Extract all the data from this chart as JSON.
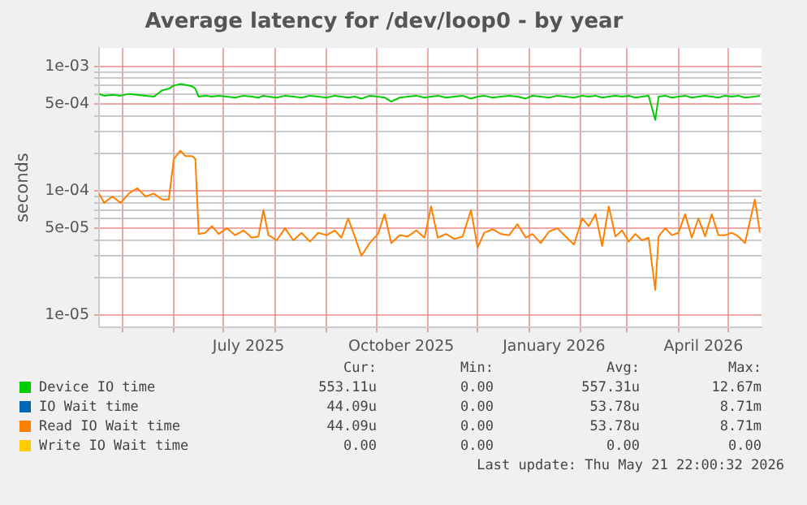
{
  "chart_data": {
    "type": "line",
    "title": "Average latency for /dev/loop0 - by year",
    "ylabel": "seconds",
    "log": "y",
    "grid": true,
    "legend": "bottom",
    "marker": "none",
    "line_style": "solid",
    "xlim": [
      "2025-04-17",
      "2026-05-21"
    ],
    "xticks": [
      {
        "value": "2025-05-01",
        "label": null
      },
      {
        "value": "2025-06-01",
        "label": null
      },
      {
        "value": "2025-07-01",
        "label": null
      },
      {
        "value": "2025-07-16",
        "label": "July 2025"
      },
      {
        "value": "2025-08-01",
        "label": null
      },
      {
        "value": "2025-09-01",
        "label": null
      },
      {
        "value": "2025-10-01",
        "label": null
      },
      {
        "value": "2025-10-16",
        "label": "October 2025"
      },
      {
        "value": "2025-11-01",
        "label": null
      },
      {
        "value": "2025-12-01",
        "label": null
      },
      {
        "value": "2026-01-01",
        "label": null
      },
      {
        "value": "2026-01-16",
        "label": "January 2026"
      },
      {
        "value": "2026-02-01",
        "label": null
      },
      {
        "value": "2026-03-01",
        "label": null
      },
      {
        "value": "2026-04-01",
        "label": null
      },
      {
        "value": "2026-04-16",
        "label": "April 2026"
      },
      {
        "value": "2026-05-01",
        "label": null
      }
    ],
    "ylim": [
      8e-06,
      0.0014
    ],
    "yticks": [
      {
        "value": 1e-05,
        "label": "1e-05"
      },
      {
        "value": 2e-05,
        "label": null
      },
      {
        "value": 3e-05,
        "label": null
      },
      {
        "value": 4e-05,
        "label": null
      },
      {
        "value": 5e-05,
        "label": "5e-05"
      },
      {
        "value": 6e-05,
        "label": null
      },
      {
        "value": 7e-05,
        "label": null
      },
      {
        "value": 8e-05,
        "label": null
      },
      {
        "value": 9e-05,
        "label": null
      },
      {
        "value": 0.0001,
        "label": "1e-04"
      },
      {
        "value": 0.0002,
        "label": null
      },
      {
        "value": 0.0003,
        "label": null
      },
      {
        "value": 0.0004,
        "label": null
      },
      {
        "value": 0.0005,
        "label": "5e-04"
      },
      {
        "value": 0.0006,
        "label": null
      },
      {
        "value": 0.0007,
        "label": null
      },
      {
        "value": 0.0008,
        "label": null
      },
      {
        "value": 0.0009,
        "label": null
      },
      {
        "value": 0.001,
        "label": "1e-03"
      }
    ],
    "x": [
      "2025-04-17",
      "2025-04-20",
      "2025-04-25",
      "2025-04-30",
      "2025-05-05",
      "2025-05-10",
      "2025-05-15",
      "2025-05-20",
      "2025-05-25",
      "2025-05-29",
      "2025-06-01",
      "2025-06-05",
      "2025-06-08",
      "2025-06-12",
      "2025-06-14",
      "2025-06-16",
      "2025-06-20",
      "2025-06-24",
      "2025-06-28",
      "2025-07-03",
      "2025-07-08",
      "2025-07-13",
      "2025-07-18",
      "2025-07-22",
      "2025-07-25",
      "2025-07-28",
      "2025-08-02",
      "2025-08-07",
      "2025-08-12",
      "2025-08-17",
      "2025-08-22",
      "2025-08-27",
      "2025-09-01",
      "2025-09-06",
      "2025-09-10",
      "2025-09-14",
      "2025-09-18",
      "2025-09-22",
      "2025-09-27",
      "2025-10-02",
      "2025-10-06",
      "2025-10-10",
      "2025-10-15",
      "2025-10-20",
      "2025-10-25",
      "2025-10-30",
      "2025-11-03",
      "2025-11-07",
      "2025-11-12",
      "2025-11-17",
      "2025-11-22",
      "2025-11-27",
      "2025-12-01",
      "2025-12-05",
      "2025-12-10",
      "2025-12-15",
      "2025-12-20",
      "2025-12-25",
      "2025-12-30",
      "2026-01-03",
      "2026-01-08",
      "2026-01-13",
      "2026-01-18",
      "2026-01-23",
      "2026-01-28",
      "2026-02-02",
      "2026-02-06",
      "2026-02-10",
      "2026-02-14",
      "2026-02-18",
      "2026-02-22",
      "2026-02-26",
      "2026-03-02",
      "2026-03-06",
      "2026-03-10",
      "2026-03-14",
      "2026-03-18",
      "2026-03-20",
      "2026-03-24",
      "2026-03-28",
      "2026-04-01",
      "2026-04-05",
      "2026-04-09",
      "2026-04-13",
      "2026-04-17",
      "2026-04-21",
      "2026-04-25",
      "2026-04-29",
      "2026-05-03",
      "2026-05-07",
      "2026-05-11",
      "2026-05-17",
      "2026-05-20"
    ],
    "series": [
      {
        "name": "Device IO time",
        "color": "#00cc00",
        "values": [
          0.0006,
          0.00058,
          0.00059,
          0.00058,
          0.0006,
          0.00059,
          0.00058,
          0.00057,
          0.00064,
          0.00066,
          0.0007,
          0.00072,
          0.00071,
          0.00069,
          0.00066,
          0.00057,
          0.00058,
          0.00057,
          0.00058,
          0.00057,
          0.00056,
          0.00058,
          0.00057,
          0.00056,
          0.00058,
          0.00057,
          0.00056,
          0.00058,
          0.00057,
          0.00056,
          0.00058,
          0.00057,
          0.00056,
          0.00058,
          0.00057,
          0.00056,
          0.00057,
          0.00055,
          0.00058,
          0.00057,
          0.00056,
          0.00052,
          0.00056,
          0.00057,
          0.00058,
          0.00056,
          0.00057,
          0.00058,
          0.00056,
          0.00057,
          0.00058,
          0.00055,
          0.00057,
          0.00058,
          0.00056,
          0.00057,
          0.00058,
          0.00057,
          0.00055,
          0.00058,
          0.00057,
          0.00056,
          0.00058,
          0.00057,
          0.00056,
          0.00058,
          0.00057,
          0.00058,
          0.00056,
          0.00057,
          0.00058,
          0.00057,
          0.00058,
          0.00056,
          0.00057,
          0.00058,
          0.00037,
          0.00057,
          0.00058,
          0.00056,
          0.00057,
          0.00058,
          0.00056,
          0.00057,
          0.00058,
          0.00057,
          0.00056,
          0.00058,
          0.00057,
          0.00058,
          0.00056,
          0.00057,
          0.00058
        ]
      },
      {
        "name": "IO Wait time",
        "color": "#0066b3",
        "values": [
          null,
          null,
          null,
          null,
          null,
          null,
          null,
          null,
          null,
          null,
          null,
          null,
          null,
          null,
          null,
          null,
          null,
          null,
          null,
          null,
          null,
          null,
          null,
          null,
          null,
          null,
          null,
          null,
          null,
          null,
          null,
          null,
          null,
          null,
          null,
          null,
          null,
          null,
          null,
          null,
          null,
          null,
          null,
          null,
          null,
          null,
          null,
          null,
          null,
          null,
          null,
          null,
          null,
          null,
          null,
          null,
          null,
          null,
          null,
          null,
          null,
          null,
          null,
          null,
          null,
          null,
          null,
          null,
          null,
          null,
          null,
          null,
          null,
          null,
          null,
          null,
          null,
          null,
          null,
          null,
          null,
          null,
          null,
          null,
          null,
          null,
          null,
          null,
          null,
          null,
          null,
          null,
          null
        ]
      },
      {
        "name": "Read IO Wait time",
        "color": "#ff8000",
        "values": [
          9.5e-05,
          8e-05,
          9e-05,
          8e-05,
          9.5e-05,
          0.000105,
          9e-05,
          9.5e-05,
          8.5e-05,
          8.5e-05,
          0.00018,
          0.00021,
          0.00019,
          0.00019,
          0.00018,
          4.5e-05,
          4.6e-05,
          5.2e-05,
          4.5e-05,
          5e-05,
          4.4e-05,
          4.8e-05,
          4.2e-05,
          4.3e-05,
          7e-05,
          4.4e-05,
          4e-05,
          5e-05,
          4e-05,
          4.6e-05,
          3.9e-05,
          4.6e-05,
          4.4e-05,
          4.8e-05,
          4.2e-05,
          6e-05,
          4.3e-05,
          3e-05,
          3.8e-05,
          4.5e-05,
          6.5e-05,
          3.8e-05,
          4.4e-05,
          4.3e-05,
          4.8e-05,
          4.2e-05,
          7.5e-05,
          4.2e-05,
          4.5e-05,
          4.1e-05,
          4.3e-05,
          7e-05,
          3.5e-05,
          4.6e-05,
          4.9e-05,
          4.5e-05,
          4.4e-05,
          5.4e-05,
          4.2e-05,
          4.5e-05,
          3.8e-05,
          4.7e-05,
          5e-05,
          4.3e-05,
          3.7e-05,
          6e-05,
          5.2e-05,
          6.5e-05,
          3.6e-05,
          7.5e-05,
          4.3e-05,
          4.8e-05,
          3.9e-05,
          4.5e-05,
          4e-05,
          4.2e-05,
          1.6e-05,
          4.3e-05,
          5e-05,
          4.4e-05,
          4.6e-05,
          6.5e-05,
          4.2e-05,
          6e-05,
          4.3e-05,
          6.5e-05,
          4.4e-05,
          4.4e-05,
          4.6e-05,
          4.3e-05,
          3.8e-05,
          8.5e-05,
          4.6e-05
        ]
      },
      {
        "name": "Write IO Wait time",
        "color": "#ffcc00",
        "values": [
          null,
          null,
          null,
          null,
          null,
          null,
          null,
          null,
          null,
          null,
          null,
          null,
          null,
          null,
          null,
          null,
          null,
          null,
          null,
          null,
          null,
          null,
          null,
          null,
          null,
          null,
          null,
          null,
          null,
          null,
          null,
          null,
          null,
          null,
          null,
          null,
          null,
          null,
          null,
          null,
          null,
          null,
          null,
          null,
          null,
          null,
          null,
          null,
          null,
          null,
          null,
          null,
          null,
          null,
          null,
          null,
          null,
          null,
          null,
          null,
          null,
          null,
          null,
          null,
          null,
          null,
          null,
          null,
          null,
          null,
          null,
          null,
          null,
          null,
          null,
          null,
          null,
          null,
          null,
          null,
          null,
          null,
          null,
          null,
          null,
          null,
          null,
          null,
          null,
          null,
          null,
          null,
          null
        ]
      }
    ],
    "annotations": [
      "Cur:",
      "Min:",
      "Avg:",
      "Max:",
      "553.11u",
      "0.00",
      "557.31u",
      "12.67m",
      "44.09u",
      "0.00",
      "53.78u",
      "8.71m",
      "44.09u",
      "0.00",
      "53.78u",
      "8.71m",
      "0.00",
      "0.00",
      "0.00",
      "0.00",
      "Last update: Thu May 21 22:00:32 2026"
    ]
  }
}
